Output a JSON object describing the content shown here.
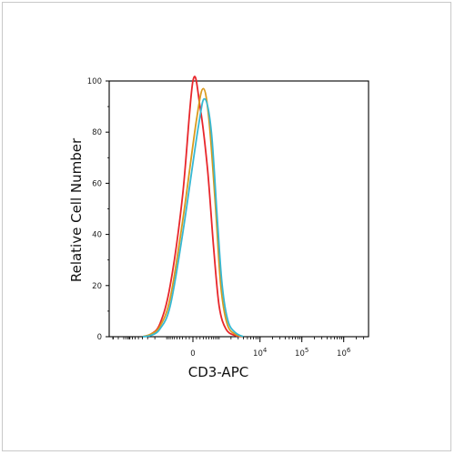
{
  "chart_data": {
    "type": "line",
    "title": "",
    "xlabel": "CD3-APC",
    "ylabel": "Relative Cell Number",
    "x_scale": "biexponential",
    "x_tick_labels": [
      {
        "base": "0",
        "exp": ""
      },
      {
        "base": "10",
        "exp": "4"
      },
      {
        "base": "10",
        "exp": "5"
      },
      {
        "base": "10",
        "exp": "6"
      }
    ],
    "y_ticks": [
      0,
      20,
      40,
      60,
      80,
      100
    ],
    "ylim": [
      0,
      100
    ],
    "grid": false,
    "legend": "none",
    "series": [
      {
        "color": "#e8262b",
        "values": [
          [
            -4000,
            0
          ],
          [
            -2500,
            1
          ],
          [
            -1500,
            5
          ],
          [
            -800,
            20
          ],
          [
            -300,
            55
          ],
          [
            0,
            100
          ],
          [
            200,
            90
          ],
          [
            450,
            65
          ],
          [
            700,
            35
          ],
          [
            1000,
            12
          ],
          [
            1500,
            3
          ],
          [
            2500,
            0.5
          ],
          [
            4000,
            0
          ]
        ]
      },
      {
        "color": "#d99a1e",
        "values": [
          [
            -4000,
            0
          ],
          [
            -2500,
            1
          ],
          [
            -1500,
            4
          ],
          [
            -800,
            15
          ],
          [
            -300,
            45
          ],
          [
            100,
            85
          ],
          [
            300,
            97
          ],
          [
            500,
            85
          ],
          [
            800,
            50
          ],
          [
            1100,
            20
          ],
          [
            1600,
            5
          ],
          [
            2500,
            1
          ],
          [
            4000,
            0
          ]
        ]
      },
      {
        "color": "#36b8d3",
        "values": [
          [
            -4000,
            0
          ],
          [
            -2500,
            0.5
          ],
          [
            -1500,
            3
          ],
          [
            -800,
            12
          ],
          [
            -300,
            40
          ],
          [
            150,
            82
          ],
          [
            350,
            93
          ],
          [
            600,
            80
          ],
          [
            900,
            45
          ],
          [
            1200,
            20
          ],
          [
            1700,
            6
          ],
          [
            2600,
            1.5
          ],
          [
            4000,
            0
          ]
        ]
      }
    ]
  }
}
